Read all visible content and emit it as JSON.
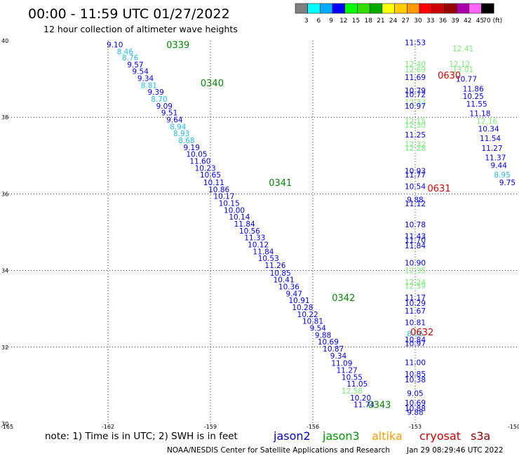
{
  "header": {
    "title": "00:00 - 11:59 UTC 01/27/2022",
    "subtitle": "12 hour collection of altimeter wave heights"
  },
  "colorbar": {
    "colors": [
      "#808080",
      "#00ffff",
      "#00aaff",
      "#0000ff",
      "#00ff00",
      "#33dd00",
      "#00aa00",
      "#ffff00",
      "#ffcc00",
      "#ff9900",
      "#ff0000",
      "#cc0000",
      "#990000",
      "#aa00aa",
      "#ff66ff",
      "#000000"
    ],
    "labels": [
      "3",
      "6",
      "9",
      "12",
      "15",
      "18",
      "21",
      "24",
      "27",
      "30",
      "33",
      "36",
      "39",
      "42",
      "45",
      "70 (ft)"
    ]
  },
  "footer": {
    "note": "note: 1) Time is in UTC; 2) SWH is in feet",
    "credit": "NOAA/NESDIS Center for Satellite Applications and Research",
    "generated": "Jan 29 08:29:46 UTC 2022"
  },
  "legend": [
    {
      "name": "jason2",
      "color": "#0000cc"
    },
    {
      "name": "jason3",
      "color": "#009900"
    },
    {
      "name": "altika",
      "color": "#ff9900"
    },
    {
      "name": "cryosat",
      "color": "#cc0000"
    },
    {
      "name": "s3a",
      "color": "#990000"
    }
  ],
  "chart_data": {
    "type": "scatter",
    "xlim": [
      -165,
      -150
    ],
    "ylim": [
      30,
      40
    ],
    "x_ticks": [
      "-165",
      "-162",
      "-159",
      "-156",
      "-153",
      "-150"
    ],
    "y_ticks": [
      "30",
      "32",
      "34",
      "36",
      "38",
      "40"
    ],
    "grid": true,
    "series": [
      {
        "name": "jason3",
        "time_labels": [
          {
            "text": "0339",
            "lon": -159.95,
            "lat": 39.9
          },
          {
            "text": "0340",
            "lon": -158.95,
            "lat": 38.9
          },
          {
            "text": "0341",
            "lon": -156.95,
            "lat": 36.3
          },
          {
            "text": "0342",
            "lon": -155.1,
            "lat": 33.3
          },
          {
            "text": "0343",
            "lon": -154.05,
            "lat": 30.5
          }
        ],
        "points": [
          {
            "lon": -161.8,
            "lat": 39.9,
            "v": "9.10"
          },
          {
            "lon": -161.5,
            "lat": 39.72,
            "v": "8.46"
          },
          {
            "lon": -161.35,
            "lat": 39.56,
            "v": "8.76"
          },
          {
            "lon": -161.2,
            "lat": 39.38,
            "v": "9.57"
          },
          {
            "lon": -161.05,
            "lat": 39.2,
            "v": "9.54"
          },
          {
            "lon": -160.9,
            "lat": 39.02,
            "v": "9.34"
          },
          {
            "lon": -160.8,
            "lat": 38.84,
            "v": "8.81"
          },
          {
            "lon": -160.6,
            "lat": 38.66,
            "v": "9.39"
          },
          {
            "lon": -160.5,
            "lat": 38.48,
            "v": "8.70"
          },
          {
            "lon": -160.35,
            "lat": 38.3,
            "v": "9.09"
          },
          {
            "lon": -160.2,
            "lat": 38.12,
            "v": "9.51"
          },
          {
            "lon": -160.05,
            "lat": 37.94,
            "v": "9.64"
          },
          {
            "lon": -159.95,
            "lat": 37.76,
            "v": "8.94"
          },
          {
            "lon": -159.85,
            "lat": 37.58,
            "v": "8.93"
          },
          {
            "lon": -159.7,
            "lat": 37.4,
            "v": "8.68"
          },
          {
            "lon": -159.55,
            "lat": 37.22,
            "v": "9.19"
          },
          {
            "lon": -159.4,
            "lat": 37.04,
            "v": "10.05"
          },
          {
            "lon": -159.3,
            "lat": 36.86,
            "v": "11.60"
          },
          {
            "lon": -159.15,
            "lat": 36.68,
            "v": "10.23"
          },
          {
            "lon": -159.0,
            "lat": 36.5,
            "v": "10.65"
          },
          {
            "lon": -158.9,
            "lat": 36.3,
            "v": "10.11"
          },
          {
            "lon": -158.75,
            "lat": 36.12,
            "v": "10.86"
          },
          {
            "lon": -158.6,
            "lat": 35.94,
            "v": "10.17"
          },
          {
            "lon": -158.45,
            "lat": 35.76,
            "v": "10.15"
          },
          {
            "lon": -158.3,
            "lat": 35.58,
            "v": "10.00"
          },
          {
            "lon": -158.15,
            "lat": 35.4,
            "v": "10.14"
          },
          {
            "lon": -158.0,
            "lat": 35.22,
            "v": "11.84"
          },
          {
            "lon": -157.85,
            "lat": 35.04,
            "v": "10.56"
          },
          {
            "lon": -157.7,
            "lat": 34.86,
            "v": "11.33"
          },
          {
            "lon": -157.6,
            "lat": 34.68,
            "v": "10.12"
          },
          {
            "lon": -157.45,
            "lat": 34.5,
            "v": "11.84"
          },
          {
            "lon": -157.3,
            "lat": 34.32,
            "v": "10.53"
          },
          {
            "lon": -157.1,
            "lat": 34.14,
            "v": "11.26"
          },
          {
            "lon": -156.95,
            "lat": 33.94,
            "v": "10.85"
          },
          {
            "lon": -156.85,
            "lat": 33.76,
            "v": "10.41"
          },
          {
            "lon": -156.7,
            "lat": 33.58,
            "v": "10.36"
          },
          {
            "lon": -156.55,
            "lat": 33.4,
            "v": "9.47"
          },
          {
            "lon": -156.4,
            "lat": 33.22,
            "v": "10.91"
          },
          {
            "lon": -156.3,
            "lat": 33.04,
            "v": "10.28"
          },
          {
            "lon": -156.15,
            "lat": 32.86,
            "v": "10.22"
          },
          {
            "lon": -156.0,
            "lat": 32.68,
            "v": "10.81"
          },
          {
            "lon": -155.85,
            "lat": 32.5,
            "v": "9.54"
          },
          {
            "lon": -155.7,
            "lat": 32.32,
            "v": "9.88"
          },
          {
            "lon": -155.55,
            "lat": 32.14,
            "v": "10.69"
          },
          {
            "lon": -155.4,
            "lat": 31.96,
            "v": "10.87"
          },
          {
            "lon": -155.25,
            "lat": 31.78,
            "v": "9.34"
          },
          {
            "lon": -155.15,
            "lat": 31.58,
            "v": "11.09"
          },
          {
            "lon": -155.0,
            "lat": 31.4,
            "v": "11.27"
          },
          {
            "lon": -154.85,
            "lat": 31.22,
            "v": "10.55"
          },
          {
            "lon": -154.7,
            "lat": 31.04,
            "v": "11.05"
          },
          {
            "lon": -154.85,
            "lat": 30.86,
            "v": "12.58"
          },
          {
            "lon": -154.6,
            "lat": 30.68,
            "v": "10.20"
          },
          {
            "lon": -154.5,
            "lat": 30.5,
            "v": "11.74"
          }
        ]
      },
      {
        "name": "s3a",
        "time_labels": [
          {
            "text": "0630",
            "lon": -152.0,
            "lat": 39.1
          },
          {
            "text": "0631",
            "lon": -152.3,
            "lat": 36.15
          },
          {
            "text": "0632",
            "lon": -152.8,
            "lat": 32.4
          }
        ],
        "points": [
          {
            "lon": -153.0,
            "lat": 39.95,
            "v": "11.53"
          },
          {
            "lon": -151.6,
            "lat": 39.8,
            "v": "12.41"
          },
          {
            "lon": -153.0,
            "lat": 39.4,
            "v": "12.40"
          },
          {
            "lon": -151.7,
            "lat": 39.4,
            "v": "12.12"
          },
          {
            "lon": -153.0,
            "lat": 39.25,
            "v": "12.69"
          },
          {
            "lon": -151.6,
            "lat": 39.25,
            "v": "13.01"
          },
          {
            "lon": -153.0,
            "lat": 39.05,
            "v": "11.69"
          },
          {
            "lon": -151.5,
            "lat": 39.0,
            "v": "10.77"
          },
          {
            "lon": -151.3,
            "lat": 38.75,
            "v": "11.86"
          },
          {
            "lon": -153.0,
            "lat": 38.7,
            "v": "10.79"
          },
          {
            "lon": -153.0,
            "lat": 38.6,
            "v": "10.72"
          },
          {
            "lon": -151.3,
            "lat": 38.55,
            "v": "10.25"
          },
          {
            "lon": -153.0,
            "lat": 38.4,
            "v": "12.33"
          },
          {
            "lon": -151.2,
            "lat": 38.35,
            "v": "11.55"
          },
          {
            "lon": -153.0,
            "lat": 38.3,
            "v": "10.97"
          },
          {
            "lon": -151.1,
            "lat": 38.1,
            "v": "11.18"
          },
          {
            "lon": -153.0,
            "lat": 37.9,
            "v": "12.15"
          },
          {
            "lon": -150.9,
            "lat": 37.9,
            "v": "12.16"
          },
          {
            "lon": -153.0,
            "lat": 37.8,
            "v": "12.30"
          },
          {
            "lon": -150.85,
            "lat": 37.7,
            "v": "10.34"
          },
          {
            "lon": -153.0,
            "lat": 37.55,
            "v": "11.25"
          },
          {
            "lon": -150.8,
            "lat": 37.45,
            "v": "11.54"
          },
          {
            "lon": -153.0,
            "lat": 37.3,
            "v": "12.32"
          },
          {
            "lon": -153.0,
            "lat": 37.2,
            "v": "12.28"
          },
          {
            "lon": -150.75,
            "lat": 37.2,
            "v": "11.27"
          },
          {
            "lon": -150.65,
            "lat": 36.95,
            "v": "11.37"
          },
          {
            "lon": -150.55,
            "lat": 36.75,
            "v": "9.44"
          },
          {
            "lon": -153.0,
            "lat": 36.6,
            "v": "10.93"
          },
          {
            "lon": -153.0,
            "lat": 36.5,
            "v": "11.77"
          },
          {
            "lon": -150.45,
            "lat": 36.5,
            "v": "8.95"
          },
          {
            "lon": -150.3,
            "lat": 36.3,
            "v": "9.75"
          },
          {
            "lon": -153.0,
            "lat": 36.2,
            "v": "10.54"
          },
          {
            "lon": -153.0,
            "lat": 35.85,
            "v": "9.88"
          },
          {
            "lon": -153.0,
            "lat": 35.75,
            "v": "11.12"
          },
          {
            "lon": -153.0,
            "lat": 35.2,
            "v": "10.78"
          },
          {
            "lon": -153.0,
            "lat": 34.9,
            "v": "11.43"
          },
          {
            "lon": -153.0,
            "lat": 34.8,
            "v": "11.70"
          },
          {
            "lon": -153.0,
            "lat": 34.65,
            "v": "11.84"
          },
          {
            "lon": -153.0,
            "lat": 34.2,
            "v": "10.90"
          },
          {
            "lon": -153.0,
            "lat": 34.0,
            "v": "12.35"
          },
          {
            "lon": -153.0,
            "lat": 33.7,
            "v": "12.24"
          },
          {
            "lon": -153.0,
            "lat": 33.6,
            "v": "12.59"
          },
          {
            "lon": -153.0,
            "lat": 33.3,
            "v": "11.17"
          },
          {
            "lon": -153.0,
            "lat": 33.15,
            "v": "10.29"
          },
          {
            "lon": -153.0,
            "lat": 32.95,
            "v": "11.67"
          },
          {
            "lon": -153.0,
            "lat": 32.65,
            "v": "10.81"
          },
          {
            "lon": -153.0,
            "lat": 32.35,
            "v": "8.96"
          },
          {
            "lon": -153.0,
            "lat": 32.2,
            "v": "10.84"
          },
          {
            "lon": -153.0,
            "lat": 32.1,
            "v": "10.97"
          },
          {
            "lon": -153.0,
            "lat": 31.6,
            "v": "11.00"
          },
          {
            "lon": -153.0,
            "lat": 31.3,
            "v": "10.85"
          },
          {
            "lon": -153.0,
            "lat": 31.15,
            "v": "10.38"
          },
          {
            "lon": -153.0,
            "lat": 30.8,
            "v": "9.05"
          },
          {
            "lon": -153.0,
            "lat": 30.55,
            "v": "10.69"
          },
          {
            "lon": -153.0,
            "lat": 30.4,
            "v": "10.88"
          },
          {
            "lon": -153.0,
            "lat": 30.3,
            "v": "9.88"
          }
        ]
      }
    ]
  }
}
